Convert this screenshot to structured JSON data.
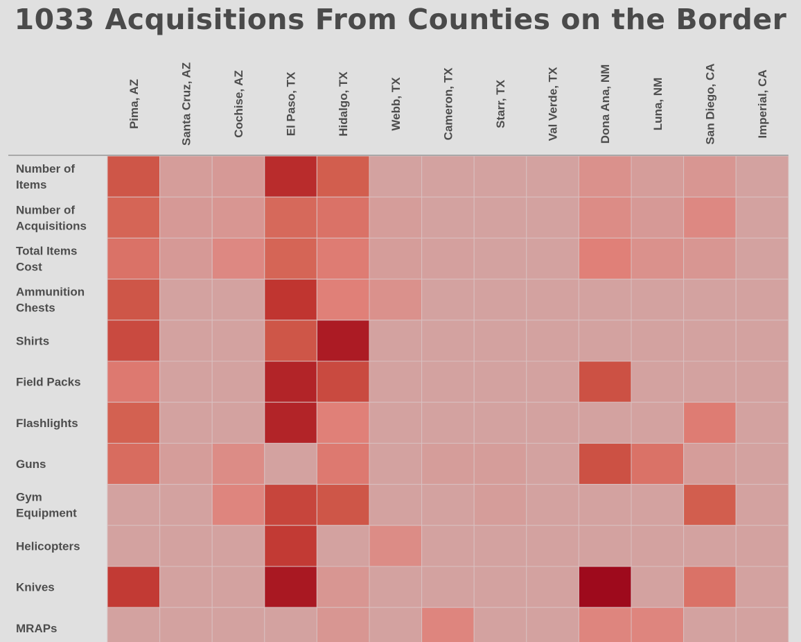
{
  "chart_data": {
    "type": "heatmap",
    "title": "1033 Acquisitions From Counties on the Border",
    "columns": [
      "Pima, AZ",
      "Santa Cruz, AZ",
      "Cochise, AZ",
      "El Paso, TX",
      "Hidalgo, TX",
      "Webb, TX",
      "Cameron, TX",
      "Starr, TX",
      "Val Verde, TX",
      "Dona Ana, NM",
      "Luna, NM",
      "San Diego, CA",
      "Imperial, CA"
    ],
    "rows": [
      {
        "label": [
          "Number of",
          "Items"
        ],
        "values": [
          0.55,
          0.08,
          0.1,
          0.8,
          0.5,
          0.05,
          0.05,
          0.05,
          0.05,
          0.15,
          0.08,
          0.12,
          0.05
        ]
      },
      {
        "label": [
          "Number of",
          "Acquisitions"
        ],
        "values": [
          0.45,
          0.1,
          0.12,
          0.42,
          0.35,
          0.08,
          0.05,
          0.05,
          0.05,
          0.18,
          0.1,
          0.2,
          0.05
        ]
      },
      {
        "label": [
          "Total Items",
          "Cost"
        ],
        "values": [
          0.35,
          0.1,
          0.2,
          0.45,
          0.28,
          0.08,
          0.06,
          0.05,
          0.05,
          0.25,
          0.15,
          0.12,
          0.05
        ]
      },
      {
        "label": [
          "Ammunition",
          "Chests"
        ],
        "values": [
          0.55,
          0.05,
          0.05,
          0.75,
          0.25,
          0.15,
          0.05,
          0.05,
          0.05,
          0.05,
          0.05,
          0.05,
          0.05
        ]
      },
      {
        "label": [
          "Shirts"
        ],
        "values": [
          0.62,
          0.05,
          0.05,
          0.55,
          0.9,
          0.05,
          0.05,
          0.05,
          0.05,
          0.05,
          0.05,
          0.05,
          0.05
        ]
      },
      {
        "label": [
          "Field Packs"
        ],
        "values": [
          0.3,
          0.05,
          0.05,
          0.85,
          0.62,
          0.05,
          0.05,
          0.05,
          0.05,
          0.58,
          0.05,
          0.05,
          0.05
        ]
      },
      {
        "label": [
          "Flashlights"
        ],
        "values": [
          0.48,
          0.05,
          0.05,
          0.85,
          0.25,
          0.05,
          0.05,
          0.05,
          0.05,
          0.05,
          0.05,
          0.28,
          0.05
        ]
      },
      {
        "label": [
          "Guns"
        ],
        "values": [
          0.4,
          0.08,
          0.18,
          0.05,
          0.3,
          0.05,
          0.08,
          0.08,
          0.05,
          0.58,
          0.35,
          0.08,
          0.05
        ]
      },
      {
        "label": [
          "Gym",
          "Equipment"
        ],
        "values": [
          0.05,
          0.05,
          0.22,
          0.65,
          0.55,
          0.05,
          0.05,
          0.08,
          0.05,
          0.05,
          0.05,
          0.5,
          0.05
        ]
      },
      {
        "label": [
          "Helicopters"
        ],
        "values": [
          0.05,
          0.05,
          0.05,
          0.72,
          0.05,
          0.18,
          0.05,
          0.05,
          0.05,
          0.05,
          0.05,
          0.05,
          0.05
        ]
      },
      {
        "label": [
          "Knives"
        ],
        "values": [
          0.72,
          0.05,
          0.05,
          0.92,
          0.12,
          0.05,
          0.05,
          0.05,
          0.05,
          1.0,
          0.05,
          0.35,
          0.05
        ]
      },
      {
        "label": [
          "MRAPs"
        ],
        "values": [
          0.05,
          0.05,
          0.05,
          0.05,
          0.12,
          0.05,
          0.22,
          0.05,
          0.05,
          0.22,
          0.22,
          0.05,
          0.05
        ]
      }
    ],
    "color_scale": [
      "#d0aaaa",
      "#e08078",
      "#d25e4e",
      "#c03530",
      "#9e0a1c"
    ]
  }
}
